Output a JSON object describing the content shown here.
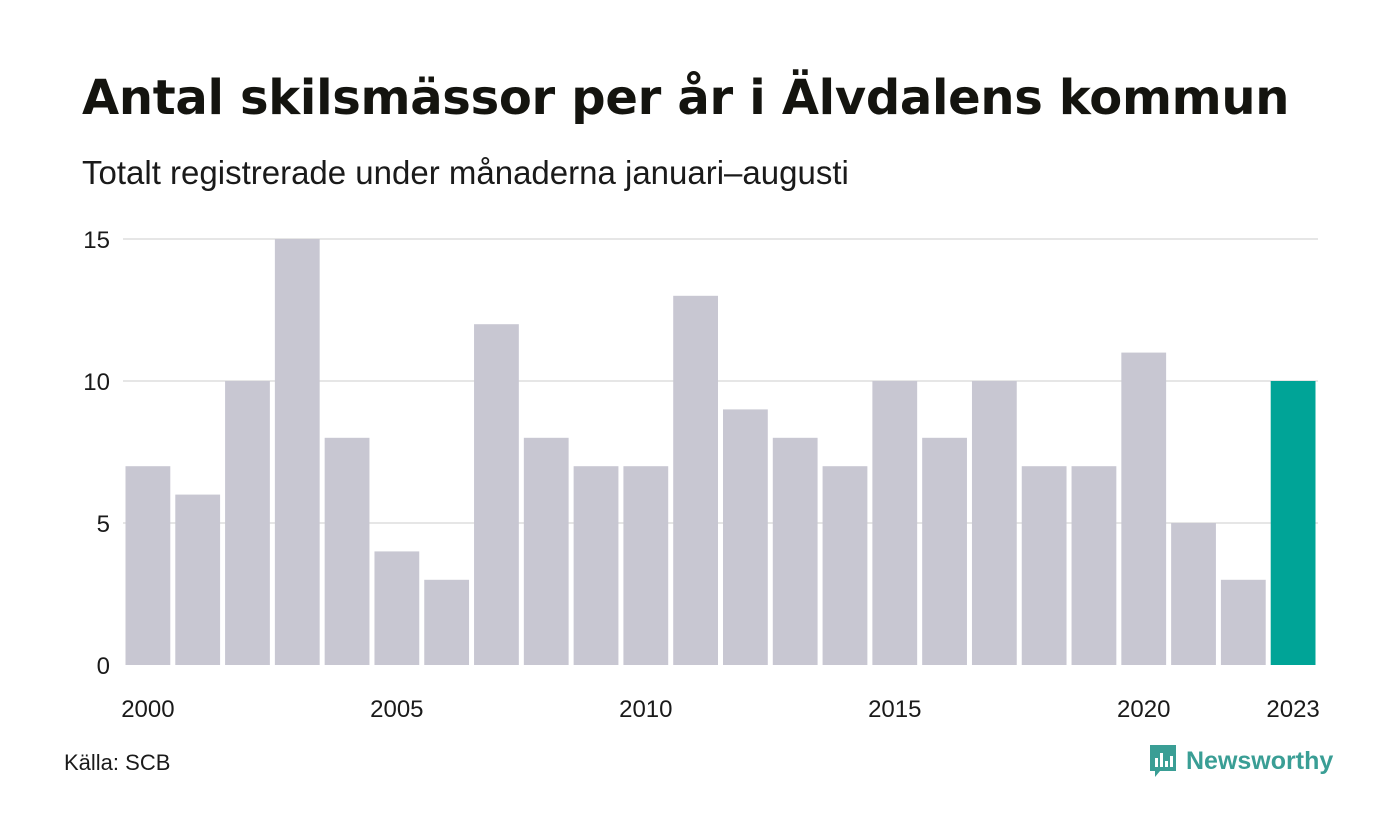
{
  "header": {
    "title": "Antal skilsmässor per år i Älvdalens kommun",
    "subtitle": "Totalt registrerade under månaderna januari–augusti"
  },
  "footer": {
    "source": "Källa: SCB",
    "brand": "Newsworthy"
  },
  "colors": {
    "bar_default": "#c8c7d2",
    "bar_highlight": "#00a497",
    "gridline": "#e6e6e6",
    "brand": "#3a9e95"
  },
  "icons": {
    "brand_logo": "bar-chart-speech-bubble-icon"
  },
  "chart_data": {
    "type": "bar",
    "title": "Antal skilsmässor per år i Älvdalens kommun",
    "subtitle": "Totalt registrerade under månaderna januari–augusti",
    "categories": [
      "2000",
      "2001",
      "2002",
      "2003",
      "2004",
      "2005",
      "2006",
      "2007",
      "2008",
      "2009",
      "2010",
      "2011",
      "2012",
      "2013",
      "2014",
      "2015",
      "2016",
      "2017",
      "2018",
      "2019",
      "2020",
      "2021",
      "2022",
      "2023"
    ],
    "values": [
      7,
      6,
      10,
      15,
      8,
      4,
      3,
      12,
      8,
      7,
      7,
      13,
      9,
      8,
      7,
      10,
      8,
      10,
      7,
      7,
      11,
      5,
      3,
      10
    ],
    "highlight_category": "2023",
    "x_tick_labels": [
      "2000",
      "2005",
      "2010",
      "2015",
      "2020",
      "2023"
    ],
    "y_ticks": [
      0,
      5,
      10,
      15
    ],
    "ylim": [
      0,
      15
    ],
    "grid": true,
    "legend": "none",
    "xlabel": "",
    "ylabel": ""
  }
}
